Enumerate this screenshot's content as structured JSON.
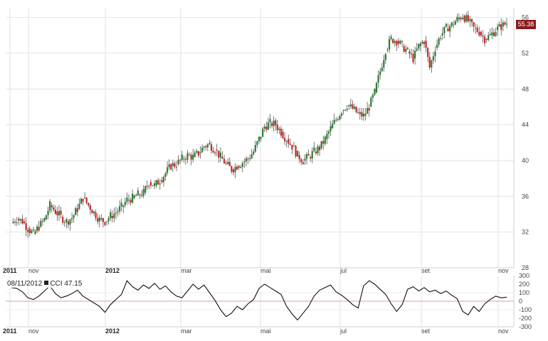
{
  "chart_data": [
    {
      "type": "candlestick",
      "ylim": [
        28,
        57
      ],
      "yticks": [
        28,
        32,
        36,
        40,
        44,
        48,
        52,
        56
      ],
      "xticks": [
        {
          "label": "2011",
          "bold": true
        },
        {
          "label": "nov",
          "bold": false
        },
        {
          "label": "2012",
          "bold": true
        },
        {
          "label": "mar",
          "bold": false
        },
        {
          "label": "mai",
          "bold": false
        },
        {
          "label": "jul",
          "bold": false
        },
        {
          "label": "set",
          "bold": false
        },
        {
          "label": "nov",
          "bold": false
        }
      ],
      "grid": true,
      "last_value": "55.38",
      "close_series": [
        33.0,
        33.5,
        33.2,
        32.4,
        31.8,
        32.6,
        33.4,
        35.0,
        34.3,
        33.7,
        33.2,
        33.6,
        34.6,
        35.8,
        35.0,
        34.2,
        33.4,
        33.2,
        33.8,
        34.2,
        34.8,
        35.6,
        35.8,
        36.2,
        36.4,
        37.6,
        37.2,
        37.8,
        38.6,
        39.4,
        39.6,
        40.2,
        40.6,
        40.4,
        40.8,
        41.6,
        41.8,
        41.2,
        40.4,
        39.6,
        39.0,
        39.4,
        39.8,
        40.2,
        41.0,
        42.4,
        43.8,
        44.2,
        44.0,
        43.2,
        42.4,
        41.6,
        40.6,
        40.0,
        40.4,
        41.0,
        41.4,
        42.4,
        43.6,
        44.6,
        45.6,
        46.2,
        45.8,
        45.2,
        45.0,
        46.0,
        47.6,
        50.0,
        52.4,
        53.6,
        53.4,
        52.8,
        52.2,
        51.4,
        52.8,
        53.4,
        50.4,
        52.6,
        54.0,
        54.8,
        55.2,
        55.8,
        56.2,
        55.6,
        54.8,
        54.4,
        53.6,
        54.0,
        54.6,
        55.0,
        55.38
      ],
      "legend": []
    },
    {
      "type": "line",
      "ylim": [
        -300,
        300
      ],
      "yticks": [
        300,
        200,
        100,
        0,
        -100,
        -200,
        -300
      ],
      "xticks": [
        {
          "label": "2011",
          "bold": true
        },
        {
          "label": "nov",
          "bold": false
        },
        {
          "label": "2012",
          "bold": true
        },
        {
          "label": "mar",
          "bold": false
        },
        {
          "label": "mai",
          "bold": false
        },
        {
          "label": "jul",
          "bold": false
        },
        {
          "label": "set",
          "bold": false
        },
        {
          "label": "nov",
          "bold": false
        }
      ],
      "legend_date": "08/11/2012",
      "legend_label": "CCI 47.15",
      "cci_values": [
        160,
        150,
        110,
        40,
        20,
        60,
        120,
        180,
        90,
        40,
        60,
        90,
        130,
        60,
        20,
        -20,
        -60,
        -130,
        -40,
        20,
        80,
        240,
        170,
        130,
        190,
        150,
        210,
        140,
        180,
        110,
        60,
        40,
        120,
        200,
        140,
        190,
        100,
        10,
        -100,
        -180,
        -140,
        -60,
        -100,
        -30,
        20,
        150,
        200,
        160,
        120,
        80,
        -60,
        -150,
        -220,
        -140,
        -60,
        60,
        130,
        160,
        190,
        110,
        70,
        20,
        -40,
        -80,
        180,
        240,
        200,
        140,
        80,
        -30,
        -120,
        -40,
        140,
        170,
        120,
        160,
        110,
        130,
        90,
        120,
        70,
        30,
        -120,
        -160,
        -60,
        -120,
        -30,
        20,
        60,
        40,
        47.15
      ],
      "legend": []
    }
  ],
  "colors": {
    "up": "#2e7d32",
    "down": "#c62828",
    "zero_line": "#d9a0a0",
    "badge": "#8b1a1a"
  }
}
